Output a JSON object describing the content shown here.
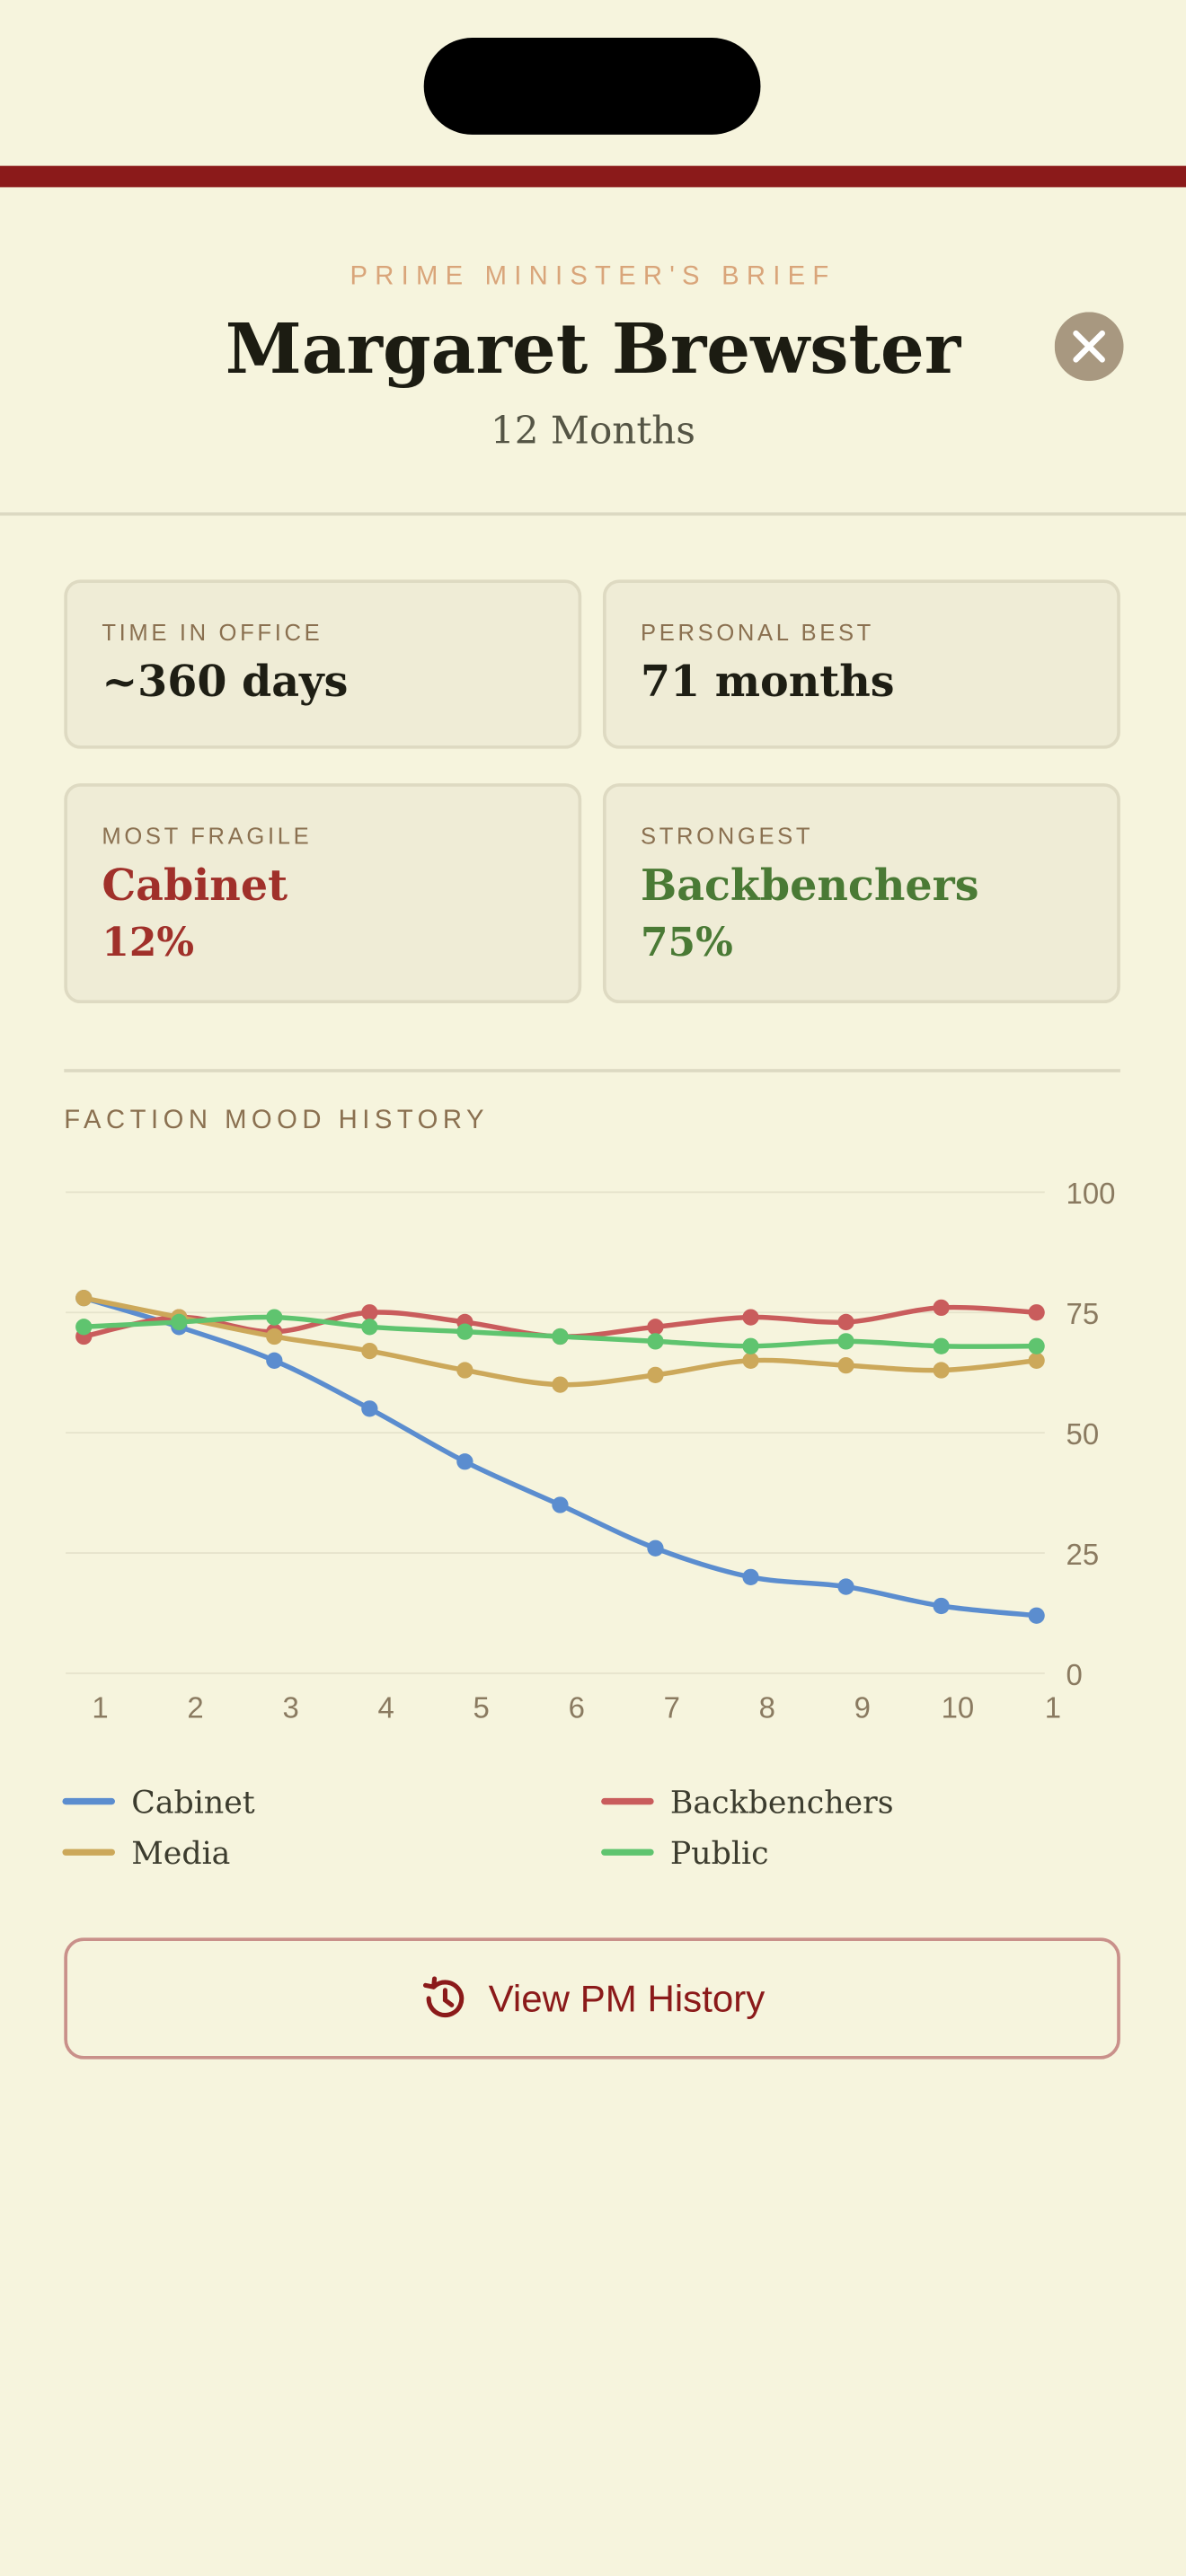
{
  "header": {
    "eyebrow": "PRIME MINISTER'S BRIEF",
    "title": "Margaret Brewster",
    "subtitle": "12 Months"
  },
  "stats": [
    {
      "label": "TIME IN OFFICE",
      "value": "~360 days"
    },
    {
      "label": "PERSONAL BEST",
      "value": "71 months"
    },
    {
      "label": "MOST FRAGILE",
      "value": "Cabinet",
      "detail": "12%"
    },
    {
      "label": "STRONGEST",
      "value": "Backbenchers",
      "detail": "75%"
    }
  ],
  "chart_data": {
    "type": "line",
    "title": "FACTION MOOD HISTORY",
    "categories": [
      "1",
      "2",
      "3",
      "4",
      "5",
      "6",
      "7",
      "8",
      "9",
      "10",
      "1"
    ],
    "ylim": [
      0,
      100
    ],
    "yticks": [
      0,
      25,
      50,
      75,
      100
    ],
    "grid": true,
    "series": [
      {
        "name": "Cabinet",
        "color": "#5b8dcf",
        "values": [
          78,
          72,
          65,
          55,
          44,
          35,
          26,
          20,
          18,
          14,
          12
        ]
      },
      {
        "name": "Backbenchers",
        "color": "#c95c5c",
        "values": [
          70,
          74,
          71,
          75,
          73,
          70,
          72,
          74,
          73,
          76,
          75
        ]
      },
      {
        "name": "Media",
        "color": "#cca85a",
        "values": [
          78,
          74,
          70,
          67,
          63,
          60,
          62,
          65,
          64,
          63,
          65
        ]
      },
      {
        "name": "Public",
        "color": "#5fc46f",
        "values": [
          72,
          73,
          74,
          72,
          71,
          70,
          69,
          68,
          69,
          68,
          68
        ]
      }
    ]
  },
  "button": {
    "label": "View PM History"
  }
}
